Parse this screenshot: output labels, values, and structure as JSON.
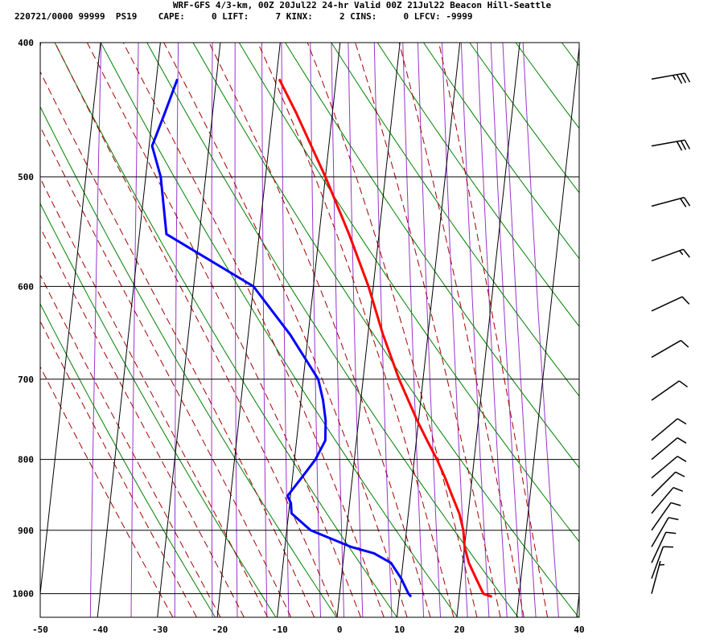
{
  "header": {
    "line1": "WRF-GFS 4/3-km, 00Z 20Jul22 24-hr Valid 00Z 21Jul22 Beacon Hill-Seattle",
    "line2": "220721/0000 99999  PS19    CAPE:     0 LIFT:     7 KINX:     2 CINS:     0 LFCV: -9999"
  },
  "colors": {
    "temperature": "#ff0000",
    "dewpoint": "#0000ff",
    "isotherm": "#000000",
    "dry_adiabat": "#008000",
    "moist_adiabat": "#a00000",
    "mixing_ratio": "#9933cc",
    "wind_barb": "#000000"
  },
  "chart_data": {
    "type": "line",
    "title": "WRF-GFS 4/3-km, 00Z 20Jul22 24-hr Valid 00Z 21Jul22 Beacon Hill-Seattle",
    "xlabel": "",
    "ylabel": "",
    "x_scale": "skewed-temperature",
    "y_scale": "log-pressure",
    "xlim": [
      -50,
      40
    ],
    "ylim": [
      1040,
      400
    ],
    "grid": true,
    "pressure_ticks": [
      400,
      500,
      600,
      700,
      800,
      900,
      1000
    ],
    "temperature_ticks": [
      -50,
      -40,
      -30,
      -20,
      -10,
      0,
      10,
      20,
      30,
      40
    ],
    "series": [
      {
        "role": "temperature",
        "points": [
          {
            "p": 1005,
            "t": 25.5
          },
          {
            "p": 1000,
            "t": 24.0
          },
          {
            "p": 975,
            "t": 22.5
          },
          {
            "p": 950,
            "t": 21.0
          },
          {
            "p": 925,
            "t": 20.0
          },
          {
            "p": 900,
            "t": 19.5
          },
          {
            "p": 875,
            "t": 18.5
          },
          {
            "p": 850,
            "t": 17.0
          },
          {
            "p": 825,
            "t": 15.5
          },
          {
            "p": 800,
            "t": 13.8
          },
          {
            "p": 775,
            "t": 11.8
          },
          {
            "p": 750,
            "t": 9.8
          },
          {
            "p": 700,
            "t": 6.0
          },
          {
            "p": 650,
            "t": 2.5
          },
          {
            "p": 600,
            "t": -0.8
          },
          {
            "p": 550,
            "t": -5.0
          },
          {
            "p": 500,
            "t": -10.0
          },
          {
            "p": 450,
            "t": -16.0
          },
          {
            "p": 425,
            "t": -19.5
          }
        ]
      },
      {
        "role": "dewpoint",
        "points": [
          {
            "p": 1005,
            "t": 12.0
          },
          {
            "p": 1000,
            "t": 11.5
          },
          {
            "p": 975,
            "t": 10.0
          },
          {
            "p": 950,
            "t": 8.0
          },
          {
            "p": 935,
            "t": 5.0
          },
          {
            "p": 925,
            "t": 1.0
          },
          {
            "p": 900,
            "t": -6.0
          },
          {
            "p": 875,
            "t": -9.5
          },
          {
            "p": 860,
            "t": -9.8
          },
          {
            "p": 850,
            "t": -10.5
          },
          {
            "p": 825,
            "t": -8.5
          },
          {
            "p": 800,
            "t": -6.5
          },
          {
            "p": 775,
            "t": -5.2
          },
          {
            "p": 750,
            "t": -5.5
          },
          {
            "p": 725,
            "t": -6.3
          },
          {
            "p": 700,
            "t": -7.5
          },
          {
            "p": 650,
            "t": -13.0
          },
          {
            "p": 600,
            "t": -20.0
          },
          {
            "p": 550,
            "t": -35.5
          },
          {
            "p": 500,
            "t": -37.5
          },
          {
            "p": 475,
            "t": -39.5
          },
          {
            "p": 450,
            "t": -38.0
          },
          {
            "p": 425,
            "t": -36.5
          }
        ]
      }
    ],
    "wind_barbs": [
      {
        "p": 425,
        "dir": 260,
        "kt": 35
      },
      {
        "p": 475,
        "dir": 260,
        "kt": 30
      },
      {
        "p": 525,
        "dir": 255,
        "kt": 20
      },
      {
        "p": 575,
        "dir": 250,
        "kt": 15
      },
      {
        "p": 625,
        "dir": 245,
        "kt": 10
      },
      {
        "p": 675,
        "dir": 240,
        "kt": 10
      },
      {
        "p": 725,
        "dir": 235,
        "kt": 10
      },
      {
        "p": 775,
        "dir": 230,
        "kt": 10
      },
      {
        "p": 800,
        "dir": 230,
        "kt": 10
      },
      {
        "p": 825,
        "dir": 230,
        "kt": 10
      },
      {
        "p": 850,
        "dir": 225,
        "kt": 10
      },
      {
        "p": 875,
        "dir": 220,
        "kt": 10
      },
      {
        "p": 900,
        "dir": 215,
        "kt": 10
      },
      {
        "p": 925,
        "dir": 210,
        "kt": 10
      },
      {
        "p": 950,
        "dir": 205,
        "kt": 10
      },
      {
        "p": 975,
        "dir": 200,
        "kt": 10
      },
      {
        "p": 1000,
        "dir": 195,
        "kt": 5
      }
    ]
  }
}
